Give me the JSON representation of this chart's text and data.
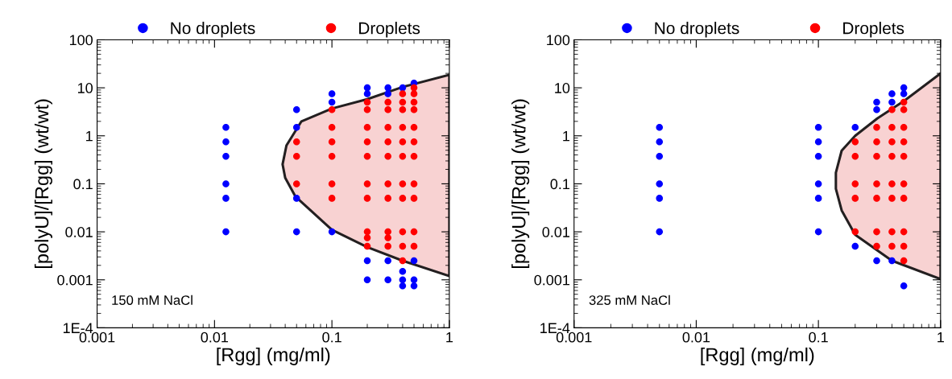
{
  "chart_data": [
    {
      "type": "scatter",
      "xlabel": "[Rgg] (mg/ml)",
      "ylabel": "[polyU]/[Rgg] (wt/wt)",
      "log": "xy",
      "xlim": [
        0.001,
        1
      ],
      "ylim": [
        0.0001,
        100
      ],
      "xticks": [
        0.001,
        0.01,
        0.1,
        1
      ],
      "yticks": [
        {
          "value": 0.0001,
          "label": "1E-4"
        },
        0.001,
        0.01,
        0.1,
        1,
        10,
        100
      ],
      "grid": false,
      "legend": "top",
      "annotations": [
        "150 mM NaCl"
      ],
      "series": [
        {
          "type": "area",
          "color": "#f8d2d2",
          "x": [
            1,
            0.4,
            0.2,
            0.1,
            0.055,
            0.041,
            0.038,
            0.04,
            0.049,
            0.1,
            0.2,
            0.4,
            1
          ],
          "values": [
            18.6,
            10.4,
            5.8,
            3.7,
            2.0,
            0.63,
            0.255,
            0.133,
            0.054,
            0.011,
            0.0048,
            0.0025,
            0.0012
          ]
        },
        {
          "name": "No droplets",
          "marker": "circle",
          "color": "#0000ff",
          "x": [
            0.0125,
            0.0125,
            0.0125,
            0.0125,
            0.0125,
            0.0125,
            0.05,
            0.05,
            0.05,
            0.05,
            0.1,
            0.1,
            0.1,
            0.2,
            0.2,
            0.2,
            0.2,
            0.3,
            0.3,
            0.3,
            0.3,
            0.4,
            0.4,
            0.4,
            0.4,
            0.5,
            0.5,
            0.5,
            0.5
          ],
          "values": [
            1.5,
            0.75,
            0.375,
            0.1,
            0.05,
            0.01,
            3.5,
            1.5,
            0.05,
            0.01,
            7.5,
            5,
            0.01,
            10,
            7.5,
            0.0025,
            0.001,
            10,
            7.5,
            0.0025,
            0.001,
            10,
            0.0015,
            0.001,
            0.00075,
            12.5,
            0.0025,
            0.001,
            0.00075
          ]
        },
        {
          "name": "Droplets",
          "marker": "circle",
          "color": "#ff0000",
          "x": [
            0.05,
            0.05,
            0.05,
            0.1,
            0.1,
            0.1,
            0.1,
            0.1,
            0.1,
            0.2,
            0.2,
            0.2,
            0.2,
            0.2,
            0.2,
            0.2,
            0.2,
            0.2,
            0.2,
            0.3,
            0.3,
            0.3,
            0.3,
            0.3,
            0.3,
            0.3,
            0.3,
            0.3,
            0.3,
            0.4,
            0.4,
            0.4,
            0.4,
            0.4,
            0.4,
            0.4,
            0.4,
            0.4,
            0.4,
            0.4,
            0.5,
            0.5,
            0.5,
            0.5,
            0.5,
            0.5,
            0.5,
            0.5,
            0.5,
            0.5,
            0.5
          ],
          "values": [
            0.75,
            0.375,
            0.1,
            3.5,
            1.5,
            0.75,
            0.375,
            0.1,
            0.05,
            5,
            3.5,
            1.5,
            0.75,
            0.375,
            0.1,
            0.05,
            0.01,
            0.0075,
            0.005,
            5,
            3.5,
            1.5,
            0.75,
            0.375,
            0.1,
            0.05,
            0.01,
            0.0075,
            0.005,
            7.5,
            5,
            3.5,
            1.5,
            0.75,
            0.375,
            0.1,
            0.05,
            0.01,
            0.005,
            0.0025,
            10,
            7.5,
            5,
            3.5,
            1.5,
            0.75,
            0.375,
            0.1,
            0.05,
            0.01,
            0.005
          ]
        }
      ]
    },
    {
      "type": "scatter",
      "xlabel": "[Rgg] (mg/ml)",
      "ylabel": "[polyU]/[Rgg] (wt/wt)",
      "log": "xy",
      "xlim": [
        0.001,
        1
      ],
      "ylim": [
        0.0001,
        100
      ],
      "xticks": [
        0.001,
        0.01,
        0.1,
        1
      ],
      "yticks": [
        {
          "value": 0.0001,
          "label": "1E-4"
        },
        0.001,
        0.01,
        0.1,
        1,
        10,
        100
      ],
      "grid": false,
      "legend": "top",
      "annotations": [
        "325 mM NaCl"
      ],
      "series": [
        {
          "type": "area",
          "color": "#f8d2d2",
          "x": [
            1,
            0.507,
            0.303,
            0.2,
            0.155,
            0.139,
            0.139,
            0.155,
            0.2,
            0.4,
            1
          ],
          "values": [
            20,
            5.4,
            2.3,
            1.0,
            0.49,
            0.17,
            0.079,
            0.028,
            0.0087,
            0.0025,
            0.00104
          ]
        },
        {
          "name": "No droplets",
          "marker": "circle",
          "color": "#0000ff",
          "x": [
            0.005,
            0.005,
            0.005,
            0.005,
            0.005,
            0.005,
            0.1,
            0.1,
            0.1,
            0.1,
            0.1,
            0.1,
            0.2,
            0.2,
            0.3,
            0.3,
            0.3,
            0.4,
            0.4,
            0.4,
            0.5,
            0.5,
            0.5
          ],
          "values": [
            1.5,
            0.75,
            0.375,
            0.1,
            0.05,
            0.01,
            1.5,
            0.75,
            0.375,
            0.1,
            0.05,
            0.01,
            1.5,
            0.005,
            5,
            3.5,
            0.0025,
            7.5,
            5,
            0.0025,
            10,
            7.5,
            0.00075
          ]
        },
        {
          "name": "Droplets",
          "marker": "circle",
          "color": "#ff0000",
          "x": [
            0.2,
            0.2,
            0.2,
            0.2,
            0.2,
            0.3,
            0.3,
            0.3,
            0.3,
            0.3,
            0.3,
            0.3,
            0.4,
            0.4,
            0.4,
            0.4,
            0.4,
            0.4,
            0.4,
            0.4,
            0.5,
            0.5,
            0.5,
            0.5,
            0.5,
            0.5,
            0.5,
            0.5,
            0.5,
            0.5
          ],
          "values": [
            0.75,
            0.375,
            0.1,
            0.05,
            0.01,
            1.5,
            0.75,
            0.375,
            0.1,
            0.05,
            0.01,
            0.005,
            3.5,
            1.5,
            0.75,
            0.375,
            0.1,
            0.05,
            0.01,
            0.005,
            5,
            3.5,
            1.5,
            0.75,
            0.375,
            0.1,
            0.05,
            0.01,
            0.005,
            0.0025
          ]
        }
      ]
    }
  ]
}
